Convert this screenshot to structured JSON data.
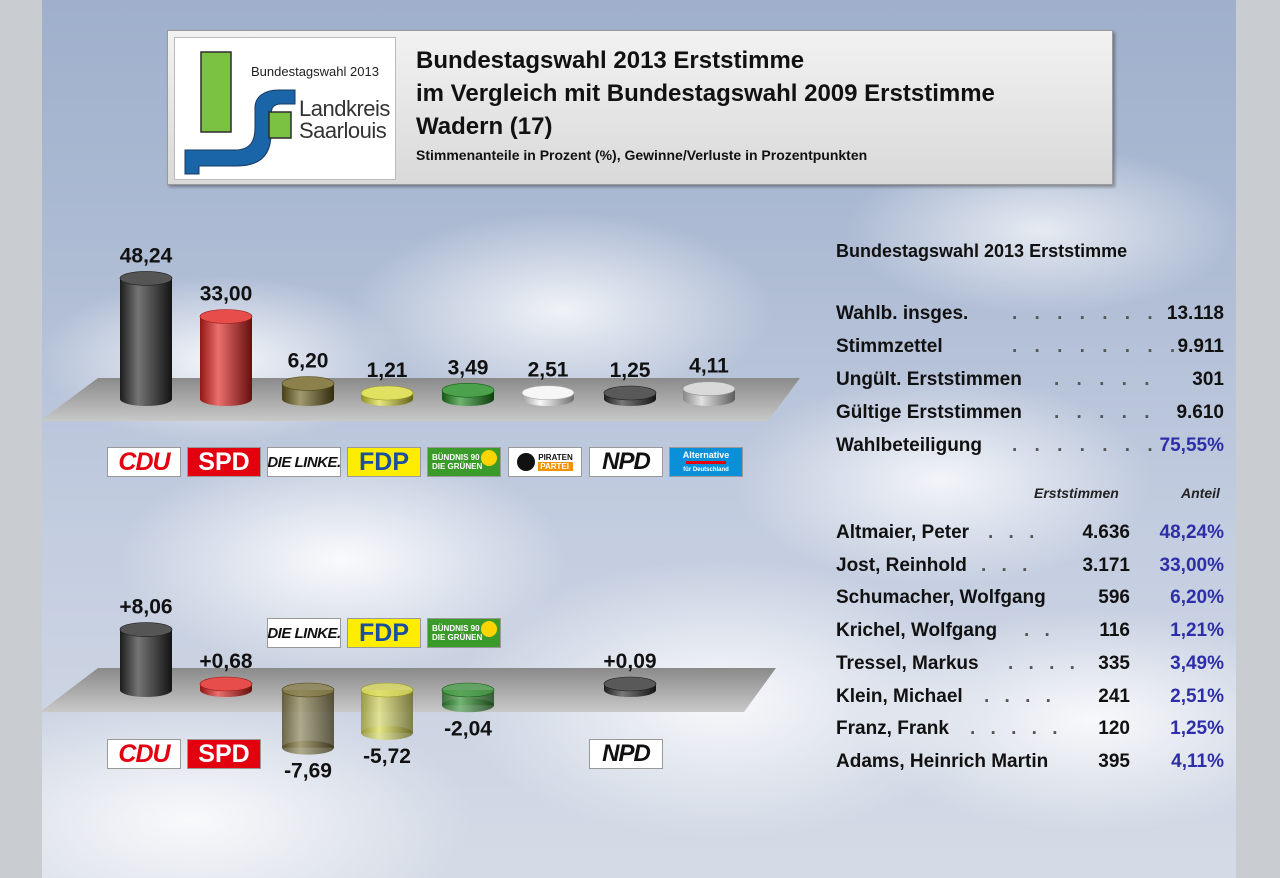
{
  "header": {
    "logo_small": "Bundestagswahl 2013",
    "logo_line1": "Landkreis",
    "logo_line2": "Saarlouis",
    "title_line1": "Bundestagswahl 2013 Erststimme",
    "title_line2": "im Vergleich mit Bundestagswahl 2009 Erststimme",
    "title_line3": "Wadern (17)",
    "subtitle": "Stimmenanteile in Prozent (%), Gewinne/Verluste in Prozentpunkten"
  },
  "party_logos": {
    "cdu": "CDU",
    "spd": "SPD",
    "linke": "DIE LINKE.",
    "fdp": "FDP",
    "gruene_line1": "BÜNDNIS 90",
    "gruene_line2": "DIE GRÜNEN",
    "piraten_line1": "PIRATEN",
    "piraten_line2": "PARTEI",
    "npd": "NPD",
    "afd_line1": "Alternative",
    "afd_line2": "für Deutschland"
  },
  "chart_data": [
    {
      "type": "bar",
      "categories": [
        "CDU",
        "SPD",
        "DIE LINKE.",
        "FDP",
        "GRÜNE",
        "PIRATEN",
        "NPD",
        "AfD"
      ],
      "values": [
        48.24,
        33.0,
        6.2,
        1.21,
        3.49,
        2.51,
        1.25,
        4.11
      ],
      "labels": [
        "48,24",
        "33,00",
        "6,20",
        "1,21",
        "3,49",
        "2,51",
        "1,25",
        "4,11"
      ],
      "colors": [
        "#2b2b2b",
        "#e0221f",
        "#6f6220",
        "#dada3a",
        "#1f8a1f",
        "#f4f4f4",
        "#2f2f2f",
        "#cfcfcf"
      ]
    },
    {
      "type": "bar",
      "categories": [
        "CDU",
        "SPD",
        "DIE LINKE.",
        "FDP",
        "GRÜNE",
        "NPD"
      ],
      "values": [
        8.06,
        0.68,
        -7.69,
        -5.72,
        -2.04,
        0.09
      ],
      "labels": [
        "+8,06",
        "+0,68",
        "-7,69",
        "-5,72",
        "-2,04",
        "+0,09"
      ],
      "colors": [
        "#2b2b2b",
        "#e0221f",
        "#6f6220",
        "#dada3a",
        "#1f8a1f",
        "#2f2f2f"
      ]
    }
  ],
  "right_panel": {
    "title": "Bundestagswahl 2013 Erststimme",
    "stats": [
      {
        "label": "Wahlb. insges.",
        "dots": ". . . . . . . .",
        "value": "13.118"
      },
      {
        "label": "Stimmzettel",
        "dots": ". . . . . . . .",
        "value": "9.911"
      },
      {
        "label": "Ungült. Erststimmen",
        "dots": ". . . . .",
        "value": "301"
      },
      {
        "label": "Gültige Erststimmen",
        "dots": ". . . . .",
        "value": "9.610"
      },
      {
        "label": "Wahlbeteiligung",
        "dots": ". . . . . . .",
        "value": "75,55%"
      }
    ],
    "col_votes": "Erststimmen",
    "col_share": "Anteil",
    "candidates": [
      {
        "name": "Altmaier, Peter",
        "dots": ". . .",
        "votes": "4.636",
        "pct": "48,24%"
      },
      {
        "name": "Jost, Reinhold",
        "dots": ". . .",
        "votes": "3.171",
        "pct": "33,00%"
      },
      {
        "name": "Schumacher, Wolfgang",
        "dots": "",
        "votes": "596",
        "pct": "6,20%"
      },
      {
        "name": "Krichel, Wolfgang",
        "dots": ". .",
        "votes": "116",
        "pct": "1,21%"
      },
      {
        "name": "Tressel, Markus",
        "dots": ". . . .",
        "votes": "335",
        "pct": "3,49%"
      },
      {
        "name": "Klein, Michael",
        "dots": ". . . .",
        "votes": "241",
        "pct": "2,51%"
      },
      {
        "name": "Franz, Frank",
        "dots": ". . . . .",
        "votes": "120",
        "pct": "1,25%"
      },
      {
        "name": "Adams, Heinrich Martin",
        "dots": "",
        "votes": "395",
        "pct": "4,11%"
      }
    ],
    "colors": {
      "highlight": "#2e2ea8"
    }
  }
}
